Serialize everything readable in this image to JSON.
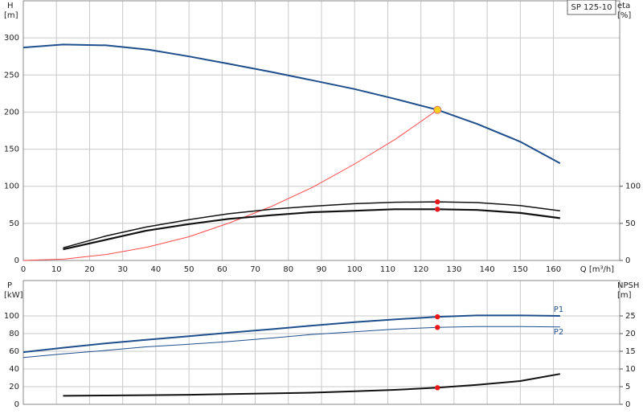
{
  "chart_data": [
    {
      "type": "line",
      "model": "SP 125-10",
      "x_label": "Q [m³/h]",
      "y_label": [
        "H",
        "[m]"
      ],
      "y2_label": [
        "eta",
        "[%]"
      ],
      "xlim": [
        0,
        180
      ],
      "xticks": [
        0,
        10,
        20,
        30,
        40,
        50,
        60,
        70,
        80,
        90,
        100,
        110,
        120,
        130,
        140,
        150,
        160
      ],
      "ylim": [
        0,
        350
      ],
      "yticks": [
        0,
        50,
        100,
        150,
        200,
        250,
        300
      ],
      "y2lim": [
        0,
        350
      ],
      "y2ticks": [
        0,
        50,
        100
      ],
      "grid": true,
      "series": [
        {
          "color": "#1f4e8c",
          "width": 2,
          "x": [
            0,
            12,
            25,
            38,
            50,
            62,
            75,
            87,
            100,
            112,
            125,
            137,
            150,
            162
          ],
          "values": [
            287,
            291,
            290,
            284,
            275,
            265,
            254,
            243,
            231,
            218,
            203,
            184,
            160,
            131
          ]
        },
        {
          "color": "#ff4a4a",
          "width": 1,
          "x": [
            0,
            12.5,
            25,
            37.5,
            50,
            62.5,
            75,
            87.5,
            100,
            112.5,
            125
          ],
          "values": [
            0,
            2,
            8,
            18,
            32,
            51,
            73,
            99,
            130,
            164,
            203
          ]
        },
        {
          "color": "#111111",
          "width": 1.5,
          "axis": "y2",
          "x": [
            12,
            25,
            37,
            50,
            62,
            75,
            87,
            100,
            112,
            125,
            137,
            150,
            162
          ],
          "values": [
            17,
            33,
            45,
            55,
            63,
            69,
            73,
            76.5,
            78.5,
            79,
            78,
            74,
            67
          ]
        },
        {
          "color": "#111111",
          "width": 2.2,
          "axis": "y2",
          "x": [
            12,
            25,
            37,
            50,
            62,
            75,
            87,
            100,
            112,
            125,
            137,
            150,
            162
          ],
          "values": [
            15,
            28,
            40,
            49,
            56,
            61,
            65,
            67,
            69,
            69,
            68,
            64,
            57
          ]
        }
      ],
      "points": [
        {
          "x": 125,
          "y": 79,
          "axis": "y2",
          "color": "#e81818"
        },
        {
          "x": 125,
          "y": 69,
          "axis": "y2",
          "color": "#e81818"
        },
        {
          "x": 125,
          "y": 203,
          "color": "#ffd21f"
        }
      ]
    },
    {
      "type": "line",
      "y_label": [
        "P",
        "[kW]"
      ],
      "y2_label": [
        "NPSH",
        "[m]"
      ],
      "xlim": [
        0,
        180
      ],
      "xticks": [
        0,
        10,
        20,
        30,
        40,
        50,
        60,
        70,
        80,
        90,
        100,
        110,
        120,
        130,
        140,
        150,
        160
      ],
      "ylim": [
        0,
        140
      ],
      "yticks": [
        0,
        20,
        40,
        60,
        80,
        100
      ],
      "y2lim": [
        0,
        35
      ],
      "y2ticks": [
        0,
        5,
        10,
        15,
        20,
        25
      ],
      "grid": true,
      "series": [
        {
          "name": "P1",
          "color": "#1f4e8c",
          "width": 2,
          "x": [
            0,
            12,
            25,
            37,
            50,
            62,
            75,
            87,
            100,
            112,
            125,
            137,
            150,
            162
          ],
          "values": [
            59,
            64,
            69,
            73,
            77,
            81,
            85,
            89,
            93,
            96,
            99,
            100.5,
            100.5,
            100
          ]
        },
        {
          "name": "P2",
          "color": "#1f4e8c",
          "width": 1,
          "x": [
            0,
            12,
            25,
            37,
            50,
            62,
            75,
            87,
            100,
            112,
            125,
            137,
            150,
            162
          ],
          "values": [
            53,
            57,
            61,
            65,
            68,
            71,
            75,
            79,
            82,
            85,
            87,
            88,
            88,
            87.5
          ]
        },
        {
          "color": "#111111",
          "width": 2,
          "axis": "y2",
          "x": [
            12,
            25,
            37,
            50,
            62,
            75,
            87,
            100,
            112,
            125,
            137,
            150,
            162
          ],
          "values": [
            2.4,
            2.5,
            2.6,
            2.7,
            2.9,
            3.1,
            3.3,
            3.7,
            4.1,
            4.7,
            5.5,
            6.6,
            8.6
          ]
        }
      ],
      "points": [
        {
          "x": 125,
          "y": 99,
          "color": "#e81818"
        },
        {
          "x": 125,
          "y": 87,
          "color": "#e81818"
        },
        {
          "x": 125,
          "y": 4.7,
          "axis": "y2",
          "color": "#e81818"
        }
      ]
    }
  ]
}
